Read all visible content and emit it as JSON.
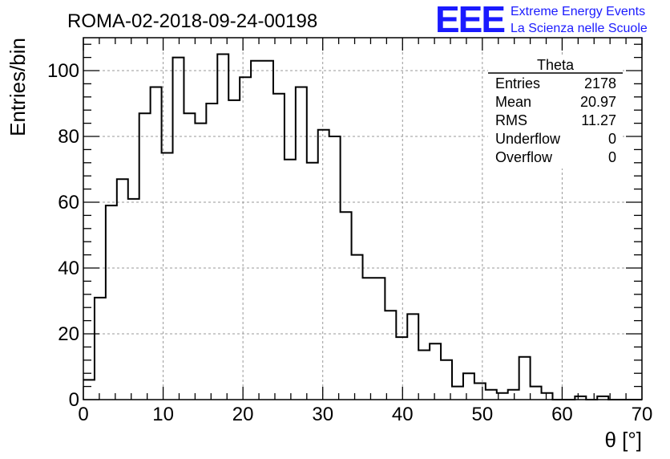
{
  "header": {
    "run_title": "ROMA-02-2018-09-24-00198",
    "logo_text": "EEE",
    "logo_line1": "Extreme Energy Events",
    "logo_line2": "La Scienza nelle Scuole",
    "logo_color": "#1a1aff"
  },
  "stats_box": {
    "title": "Theta",
    "rows": [
      {
        "label": "Entries",
        "value": "2178"
      },
      {
        "label": "Mean",
        "value": "20.97"
      },
      {
        "label": "RMS",
        "value": "11.27"
      },
      {
        "label": "Underflow",
        "value": "0"
      },
      {
        "label": "Overflow",
        "value": "0"
      }
    ]
  },
  "chart_data": {
    "type": "histogram",
    "title": "ROMA-02-2018-09-24-00198",
    "xlabel": "θ [°]",
    "ylabel": "Entries/bin",
    "xlim": [
      0,
      70
    ],
    "ylim": [
      0,
      110
    ],
    "bin_width": 1.4,
    "x_ticks": [
      "0",
      "10",
      "20",
      "30",
      "40",
      "50",
      "60",
      "70"
    ],
    "y_ticks": [
      "0",
      "20",
      "40",
      "60",
      "80",
      "100"
    ],
    "x_tick_values": [
      0,
      10,
      20,
      30,
      40,
      50,
      60,
      70
    ],
    "y_tick_values": [
      0,
      20,
      40,
      60,
      80,
      100
    ],
    "grid": true,
    "line_color": "#000000",
    "values": [
      6,
      31,
      59,
      67,
      61,
      87,
      95,
      75,
      104,
      87,
      84,
      90,
      105,
      91,
      98,
      103,
      103,
      93,
      73,
      95,
      72,
      82,
      80,
      57,
      44,
      37,
      37,
      27,
      19,
      26,
      15,
      17,
      12,
      4,
      8,
      5,
      3,
      2,
      3,
      13,
      4,
      2,
      0,
      0,
      1,
      0,
      1,
      0,
      0,
      0
    ]
  }
}
